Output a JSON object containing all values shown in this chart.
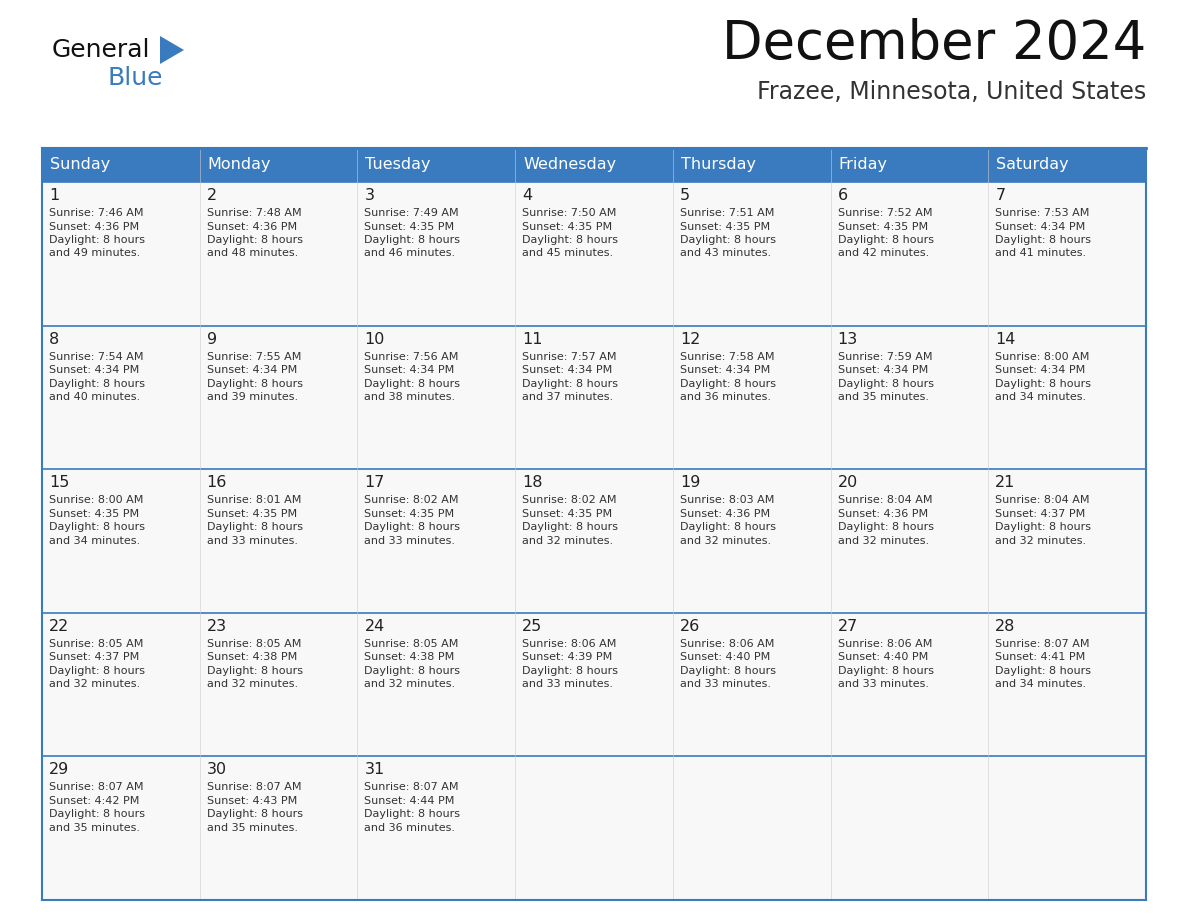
{
  "title": "December 2024",
  "subtitle": "Frazee, Minnesota, United States",
  "header_color": "#3a7abf",
  "header_text_color": "#ffffff",
  "border_color": "#3a7abf",
  "text_color": "#333333",
  "day_headers": [
    "Sunday",
    "Monday",
    "Tuesday",
    "Wednesday",
    "Thursday",
    "Friday",
    "Saturday"
  ],
  "days": [
    {
      "day": 1,
      "col": 0,
      "row": 0,
      "sunrise": "7:46 AM",
      "sunset": "4:36 PM",
      "daylight_hours": 8,
      "daylight_minutes": 49
    },
    {
      "day": 2,
      "col": 1,
      "row": 0,
      "sunrise": "7:48 AM",
      "sunset": "4:36 PM",
      "daylight_hours": 8,
      "daylight_minutes": 48
    },
    {
      "day": 3,
      "col": 2,
      "row": 0,
      "sunrise": "7:49 AM",
      "sunset": "4:35 PM",
      "daylight_hours": 8,
      "daylight_minutes": 46
    },
    {
      "day": 4,
      "col": 3,
      "row": 0,
      "sunrise": "7:50 AM",
      "sunset": "4:35 PM",
      "daylight_hours": 8,
      "daylight_minutes": 45
    },
    {
      "day": 5,
      "col": 4,
      "row": 0,
      "sunrise": "7:51 AM",
      "sunset": "4:35 PM",
      "daylight_hours": 8,
      "daylight_minutes": 43
    },
    {
      "day": 6,
      "col": 5,
      "row": 0,
      "sunrise": "7:52 AM",
      "sunset": "4:35 PM",
      "daylight_hours": 8,
      "daylight_minutes": 42
    },
    {
      "day": 7,
      "col": 6,
      "row": 0,
      "sunrise": "7:53 AM",
      "sunset": "4:34 PM",
      "daylight_hours": 8,
      "daylight_minutes": 41
    },
    {
      "day": 8,
      "col": 0,
      "row": 1,
      "sunrise": "7:54 AM",
      "sunset": "4:34 PM",
      "daylight_hours": 8,
      "daylight_minutes": 40
    },
    {
      "day": 9,
      "col": 1,
      "row": 1,
      "sunrise": "7:55 AM",
      "sunset": "4:34 PM",
      "daylight_hours": 8,
      "daylight_minutes": 39
    },
    {
      "day": 10,
      "col": 2,
      "row": 1,
      "sunrise": "7:56 AM",
      "sunset": "4:34 PM",
      "daylight_hours": 8,
      "daylight_minutes": 38
    },
    {
      "day": 11,
      "col": 3,
      "row": 1,
      "sunrise": "7:57 AM",
      "sunset": "4:34 PM",
      "daylight_hours": 8,
      "daylight_minutes": 37
    },
    {
      "day": 12,
      "col": 4,
      "row": 1,
      "sunrise": "7:58 AM",
      "sunset": "4:34 PM",
      "daylight_hours": 8,
      "daylight_minutes": 36
    },
    {
      "day": 13,
      "col": 5,
      "row": 1,
      "sunrise": "7:59 AM",
      "sunset": "4:34 PM",
      "daylight_hours": 8,
      "daylight_minutes": 35
    },
    {
      "day": 14,
      "col": 6,
      "row": 1,
      "sunrise": "8:00 AM",
      "sunset": "4:34 PM",
      "daylight_hours": 8,
      "daylight_minutes": 34
    },
    {
      "day": 15,
      "col": 0,
      "row": 2,
      "sunrise": "8:00 AM",
      "sunset": "4:35 PM",
      "daylight_hours": 8,
      "daylight_minutes": 34
    },
    {
      "day": 16,
      "col": 1,
      "row": 2,
      "sunrise": "8:01 AM",
      "sunset": "4:35 PM",
      "daylight_hours": 8,
      "daylight_minutes": 33
    },
    {
      "day": 17,
      "col": 2,
      "row": 2,
      "sunrise": "8:02 AM",
      "sunset": "4:35 PM",
      "daylight_hours": 8,
      "daylight_minutes": 33
    },
    {
      "day": 18,
      "col": 3,
      "row": 2,
      "sunrise": "8:02 AM",
      "sunset": "4:35 PM",
      "daylight_hours": 8,
      "daylight_minutes": 32
    },
    {
      "day": 19,
      "col": 4,
      "row": 2,
      "sunrise": "8:03 AM",
      "sunset": "4:36 PM",
      "daylight_hours": 8,
      "daylight_minutes": 32
    },
    {
      "day": 20,
      "col": 5,
      "row": 2,
      "sunrise": "8:04 AM",
      "sunset": "4:36 PM",
      "daylight_hours": 8,
      "daylight_minutes": 32
    },
    {
      "day": 21,
      "col": 6,
      "row": 2,
      "sunrise": "8:04 AM",
      "sunset": "4:37 PM",
      "daylight_hours": 8,
      "daylight_minutes": 32
    },
    {
      "day": 22,
      "col": 0,
      "row": 3,
      "sunrise": "8:05 AM",
      "sunset": "4:37 PM",
      "daylight_hours": 8,
      "daylight_minutes": 32
    },
    {
      "day": 23,
      "col": 1,
      "row": 3,
      "sunrise": "8:05 AM",
      "sunset": "4:38 PM",
      "daylight_hours": 8,
      "daylight_minutes": 32
    },
    {
      "day": 24,
      "col": 2,
      "row": 3,
      "sunrise": "8:05 AM",
      "sunset": "4:38 PM",
      "daylight_hours": 8,
      "daylight_minutes": 32
    },
    {
      "day": 25,
      "col": 3,
      "row": 3,
      "sunrise": "8:06 AM",
      "sunset": "4:39 PM",
      "daylight_hours": 8,
      "daylight_minutes": 33
    },
    {
      "day": 26,
      "col": 4,
      "row": 3,
      "sunrise": "8:06 AM",
      "sunset": "4:40 PM",
      "daylight_hours": 8,
      "daylight_minutes": 33
    },
    {
      "day": 27,
      "col": 5,
      "row": 3,
      "sunrise": "8:06 AM",
      "sunset": "4:40 PM",
      "daylight_hours": 8,
      "daylight_minutes": 33
    },
    {
      "day": 28,
      "col": 6,
      "row": 3,
      "sunrise": "8:07 AM",
      "sunset": "4:41 PM",
      "daylight_hours": 8,
      "daylight_minutes": 34
    },
    {
      "day": 29,
      "col": 0,
      "row": 4,
      "sunrise": "8:07 AM",
      "sunset": "4:42 PM",
      "daylight_hours": 8,
      "daylight_minutes": 35
    },
    {
      "day": 30,
      "col": 1,
      "row": 4,
      "sunrise": "8:07 AM",
      "sunset": "4:43 PM",
      "daylight_hours": 8,
      "daylight_minutes": 35
    },
    {
      "day": 31,
      "col": 2,
      "row": 4,
      "sunrise": "8:07 AM",
      "sunset": "4:44 PM",
      "daylight_hours": 8,
      "daylight_minutes": 36
    }
  ],
  "num_rows": 5,
  "num_cols": 7,
  "logo_text_general": "General",
  "logo_triangle_color": "#3a7abf",
  "logo_text_blue": "Blue"
}
